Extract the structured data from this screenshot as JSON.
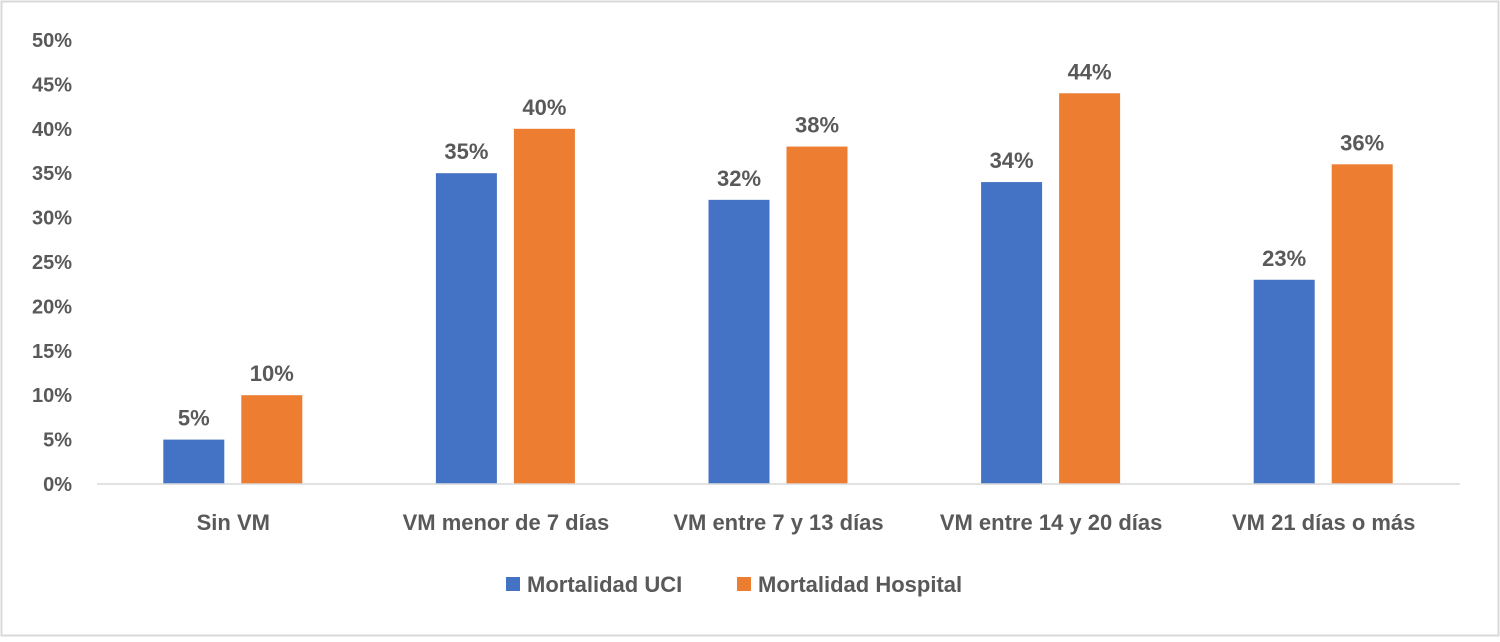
{
  "chart_data": {
    "type": "bar",
    "title": "",
    "xlabel": "",
    "ylabel": "",
    "ylim": [
      0,
      50
    ],
    "yticks": [
      "0%",
      "5%",
      "10%",
      "15%",
      "20%",
      "25%",
      "30%",
      "35%",
      "40%",
      "45%",
      "50%"
    ],
    "categories": [
      "Sin VM",
      "VM menor de 7 días",
      "VM entre 7 y 13 días",
      "VM entre 14 y 20 días",
      "VM 21 días o más"
    ],
    "series": [
      {
        "name": "Mortalidad UCI",
        "color": "#4472C4",
        "values": [
          5,
          35,
          32,
          34,
          23
        ],
        "labels": [
          "5%",
          "35%",
          "32%",
          "34%",
          "23%"
        ]
      },
      {
        "name": "Mortalidad Hospital",
        "color": "#ED7D31",
        "values": [
          10,
          40,
          38,
          44,
          36
        ],
        "labels": [
          "10%",
          "40%",
          "38%",
          "44%",
          "36%"
        ]
      }
    ],
    "grid": false,
    "legend": "bottom-center"
  }
}
